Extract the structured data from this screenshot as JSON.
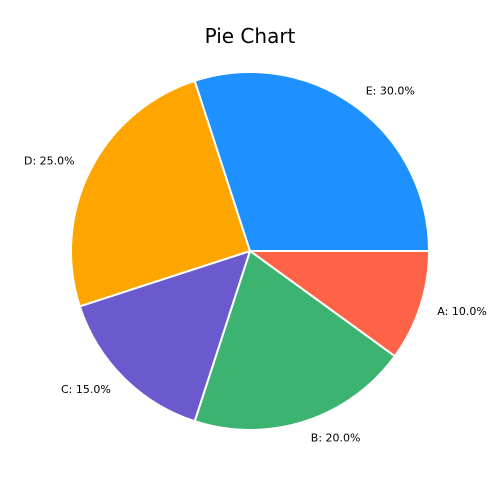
{
  "chart_data": {
    "type": "pie",
    "title": "Pie Chart",
    "categories": [
      "A",
      "B",
      "C",
      "D",
      "E"
    ],
    "values": [
      10.0,
      20.0,
      15.0,
      25.0,
      30.0
    ],
    "labels": [
      "A: 10.0%",
      "B: 20.0%",
      "C: 15.0%",
      "D: 25.0%",
      "E: 30.0%"
    ],
    "colors": [
      "#ff6347",
      "#3cb371",
      "#6a5acd",
      "#ffa500",
      "#1e90ff"
    ],
    "start_angle": "3 o'clock",
    "direction": "clockwise",
    "legend": "none"
  }
}
